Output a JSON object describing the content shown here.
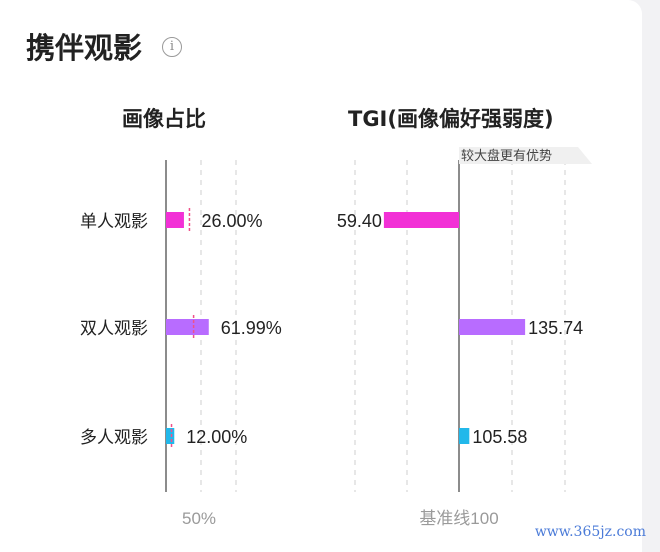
{
  "title": "携伴观影",
  "info_icon": "info-icon",
  "watermark": "www.365jz.com",
  "chart_data": [
    {
      "type": "bar",
      "title": "画像占比",
      "categories": [
        "单人观影",
        "双人观影",
        "多人观影"
      ],
      "values": [
        26.0,
        61.99,
        12.0
      ],
      "value_labels": [
        "26.00%",
        "61.99%",
        "12.00%"
      ],
      "benchmark_values": [
        34,
        40,
        8
      ],
      "reference_label": "50%",
      "colors": [
        "#f230d6",
        "#b86cff",
        "#22b8ea"
      ],
      "benchmark_color": "#f0508a"
    },
    {
      "type": "bar",
      "title": "TGI(画像偏好强弱度)",
      "categories": [
        "单人观影",
        "双人观影",
        "多人观影"
      ],
      "values": [
        59.4,
        135.74,
        105.58
      ],
      "value_labels": [
        "59.40",
        "135.74",
        "105.58"
      ],
      "baseline": 100,
      "baseline_label": "基准线100",
      "annotation": "较大盘更有优势",
      "colors": [
        "#f230d6",
        "#b86cff",
        "#22b8ea"
      ]
    }
  ]
}
